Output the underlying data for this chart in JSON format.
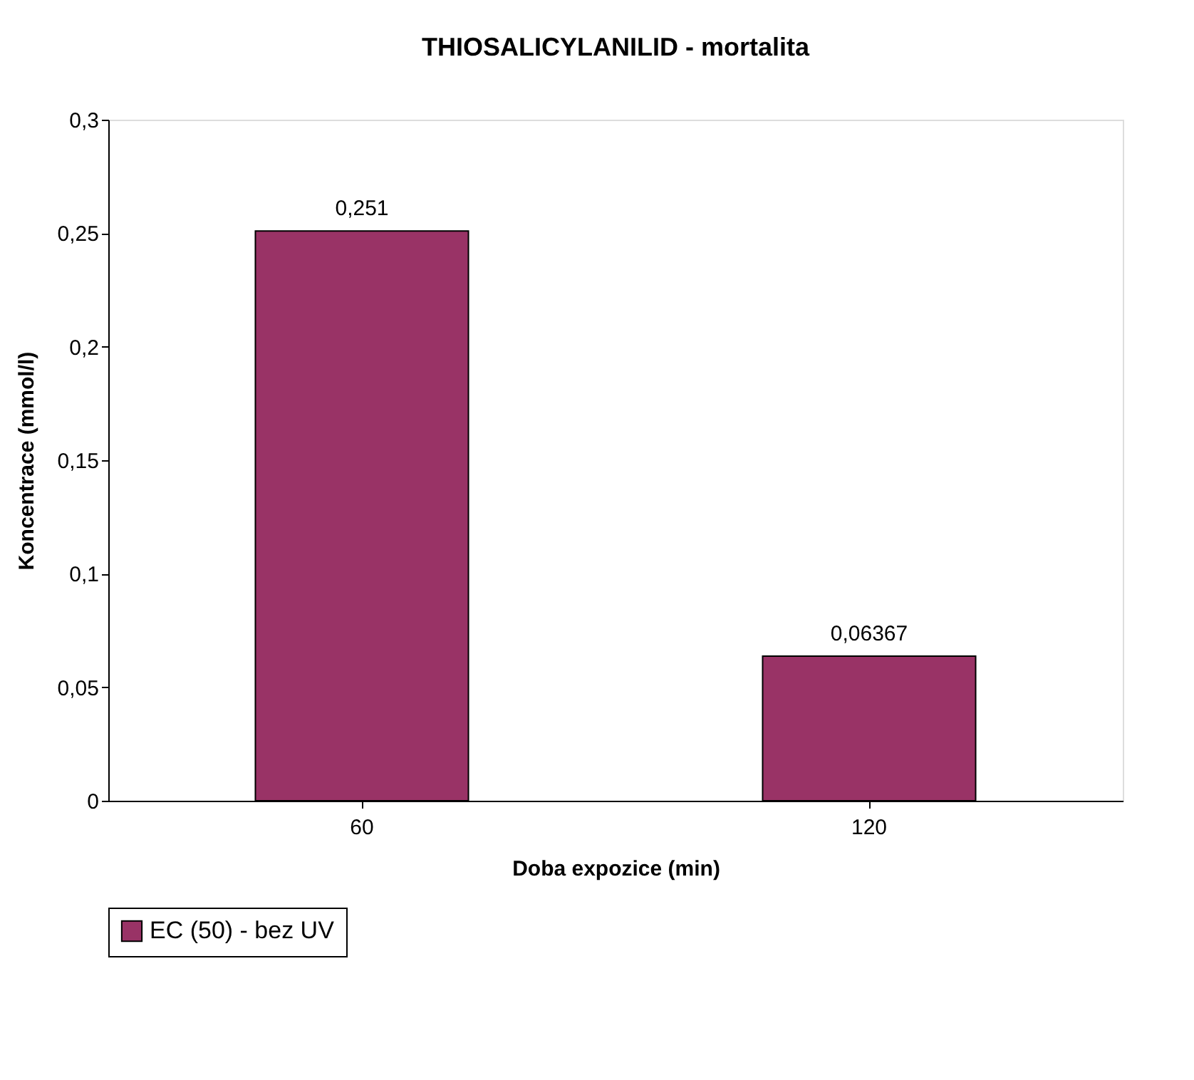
{
  "chart_data": {
    "type": "bar",
    "title": "THIOSALICYLANILID - mortalita",
    "xlabel": "Doba expozice (min)",
    "ylabel": "Koncentrace (mmol/l)",
    "categories": [
      "60",
      "120"
    ],
    "series": [
      {
        "name": "EC (50) - bez UV",
        "color": "#993366",
        "values": [
          0.251,
          0.06367
        ],
        "value_labels": [
          "0,251",
          "0,06367"
        ]
      }
    ],
    "ylim": [
      0,
      0.3
    ],
    "yticks": [
      {
        "value": 0,
        "label": "0"
      },
      {
        "value": 0.05,
        "label": "0,05"
      },
      {
        "value": 0.1,
        "label": "0,1"
      },
      {
        "value": 0.15,
        "label": "0,15"
      },
      {
        "value": 0.2,
        "label": "0,2"
      },
      {
        "value": 0.25,
        "label": "0,25"
      },
      {
        "value": 0.3,
        "label": "0,3"
      }
    ],
    "grid": false,
    "legend": "bottom"
  }
}
